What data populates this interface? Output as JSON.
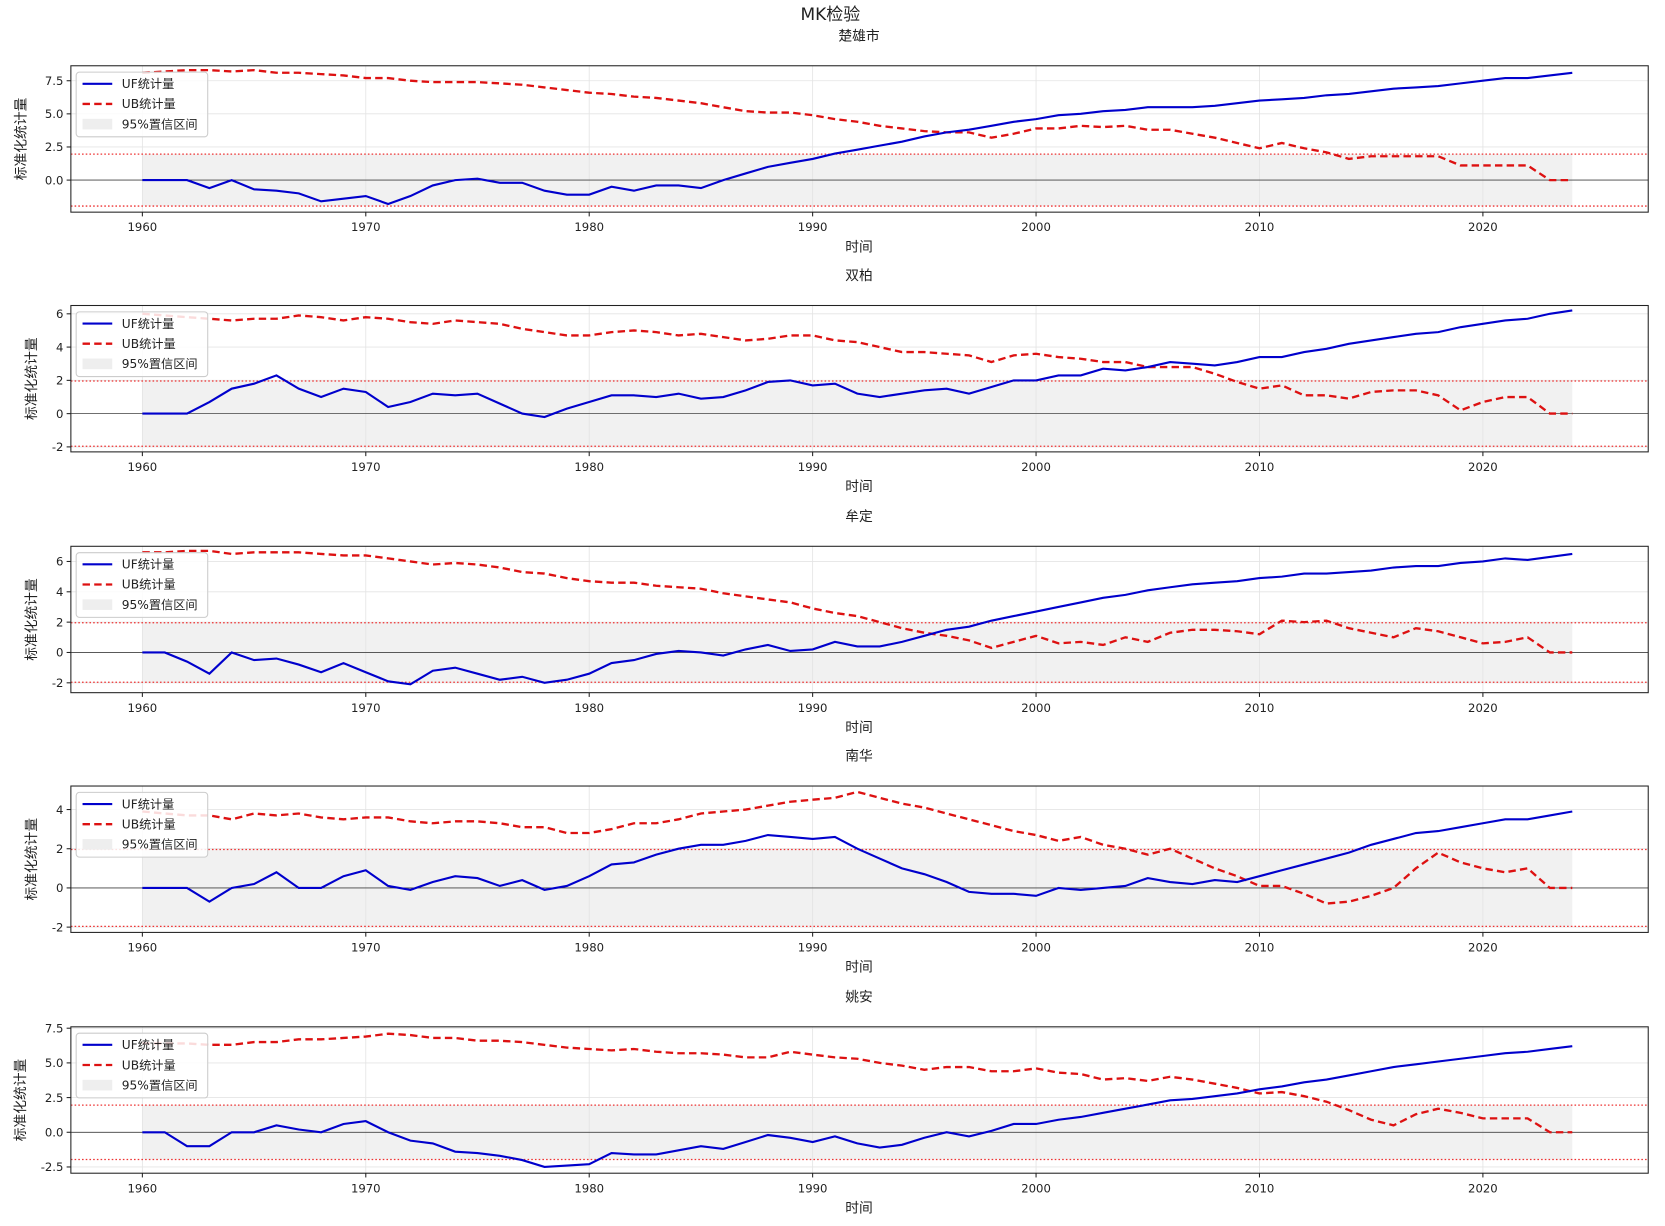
{
  "chart_data": {
    "type": "line",
    "title": "MK检验",
    "xlabel": "时间",
    "ylabel": "标准化统计量",
    "legend": {
      "placement": "top-left",
      "entries": [
        "UF统计量",
        "UB统计量",
        "95%置信区间"
      ]
    },
    "confidence_bound": 1.96,
    "xlim": [
      1956.8,
      2027.4
    ],
    "xticks": [
      1960,
      1970,
      1980,
      1990,
      2000,
      2010,
      2020
    ],
    "x_start": 1960,
    "colors": {
      "uf": "#0000cc",
      "ub": "#dd1111",
      "band": "#eeeeee",
      "bound": "#ee3333"
    },
    "grid": true,
    "panels": [
      {
        "title": "楚雄市",
        "ylim": [
          -2.42,
          8.63
        ],
        "yticks": [
          0,
          2.5,
          5,
          7.5
        ],
        "decimals": 1,
        "uf": [
          0,
          0,
          0,
          -0.6,
          0,
          -0.7,
          -0.8,
          -1.0,
          -1.6,
          -1.4,
          -1.2,
          -1.8,
          -1.2,
          -0.4,
          0,
          0.1,
          -0.2,
          -0.2,
          -0.8,
          -1.1,
          -1.1,
          -0.5,
          -0.8,
          -0.4,
          -0.4,
          -0.6,
          0,
          0.5,
          1.0,
          1.3,
          1.6,
          2.0,
          2.3,
          2.6,
          2.9,
          3.3,
          3.6,
          3.8,
          4.1,
          4.4,
          4.6,
          4.9,
          5.0,
          5.2,
          5.3,
          5.5,
          5.5,
          5.5,
          5.6,
          5.8,
          6.0,
          6.1,
          6.2,
          6.4,
          6.5,
          6.7,
          6.9,
          7.0,
          7.1,
          7.3,
          7.5,
          7.7,
          7.7,
          7.9,
          8.1
        ],
        "ub": [
          8.1,
          8.2,
          8.3,
          8.3,
          8.2,
          8.3,
          8.1,
          8.1,
          8.0,
          7.9,
          7.7,
          7.7,
          7.5,
          7.4,
          7.4,
          7.4,
          7.3,
          7.2,
          7.0,
          6.8,
          6.6,
          6.5,
          6.3,
          6.2,
          6.0,
          5.8,
          5.5,
          5.2,
          5.1,
          5.1,
          4.9,
          4.6,
          4.4,
          4.1,
          3.9,
          3.7,
          3.6,
          3.6,
          3.2,
          3.5,
          3.9,
          3.9,
          4.1,
          4.0,
          4.1,
          3.8,
          3.8,
          3.5,
          3.2,
          2.8,
          2.4,
          2.8,
          2.4,
          2.1,
          1.6,
          1.8,
          1.8,
          1.8,
          1.8,
          1.1,
          1.1,
          1.1,
          1.1,
          0,
          0
        ]
      },
      {
        "title": "双柏",
        "ylim": [
          -2.3,
          6.5
        ],
        "yticks": [
          -2,
          0,
          2,
          4,
          6
        ],
        "decimals": 0,
        "uf": [
          0,
          0,
          0,
          0.7,
          1.5,
          1.8,
          2.3,
          1.5,
          1.0,
          1.5,
          1.3,
          0.4,
          0.7,
          1.2,
          1.1,
          1.2,
          0.6,
          0,
          -0.2,
          0.3,
          0.7,
          1.1,
          1.1,
          1.0,
          1.2,
          0.9,
          1.0,
          1.4,
          1.9,
          2.0,
          1.7,
          1.8,
          1.2,
          1.0,
          1.2,
          1.4,
          1.5,
          1.2,
          1.6,
          2.0,
          2.0,
          2.3,
          2.3,
          2.7,
          2.6,
          2.8,
          3.1,
          3.0,
          2.9,
          3.1,
          3.4,
          3.4,
          3.7,
          3.9,
          4.2,
          4.4,
          4.6,
          4.8,
          4.9,
          5.2,
          5.4,
          5.6,
          5.7,
          6.0,
          6.2
        ],
        "ub": [
          6.0,
          5.9,
          5.8,
          5.7,
          5.6,
          5.7,
          5.7,
          5.9,
          5.8,
          5.6,
          5.8,
          5.7,
          5.5,
          5.4,
          5.6,
          5.5,
          5.4,
          5.1,
          4.9,
          4.7,
          4.7,
          4.9,
          5.0,
          4.9,
          4.7,
          4.8,
          4.6,
          4.4,
          4.5,
          4.7,
          4.7,
          4.4,
          4.3,
          4.0,
          3.7,
          3.7,
          3.6,
          3.5,
          3.1,
          3.5,
          3.6,
          3.4,
          3.3,
          3.1,
          3.1,
          2.8,
          2.8,
          2.8,
          2.4,
          1.9,
          1.5,
          1.7,
          1.1,
          1.1,
          0.9,
          1.3,
          1.4,
          1.4,
          1.1,
          0.2,
          0.7,
          1.0,
          1.0,
          0,
          0
        ]
      },
      {
        "title": "牟定",
        "ylim": [
          -2.65,
          7.0
        ],
        "yticks": [
          -2,
          0,
          2,
          4,
          6
        ],
        "decimals": 0,
        "uf": [
          0,
          0,
          -0.6,
          -1.4,
          0,
          -0.5,
          -0.4,
          -0.8,
          -1.3,
          -0.7,
          -1.3,
          -1.9,
          -2.1,
          -1.2,
          -1.0,
          -1.4,
          -1.8,
          -1.6,
          -2.0,
          -1.8,
          -1.4,
          -0.7,
          -0.5,
          -0.1,
          0.1,
          0,
          -0.2,
          0.2,
          0.5,
          0.1,
          0.2,
          0.7,
          0.4,
          0.4,
          0.7,
          1.1,
          1.5,
          1.7,
          2.1,
          2.4,
          2.7,
          3.0,
          3.3,
          3.6,
          3.8,
          4.1,
          4.3,
          4.5,
          4.6,
          4.7,
          4.9,
          5.0,
          5.2,
          5.2,
          5.3,
          5.4,
          5.6,
          5.7,
          5.7,
          5.9,
          6.0,
          6.2,
          6.1,
          6.3,
          6.5
        ],
        "ub": [
          6.6,
          6.6,
          6.7,
          6.7,
          6.5,
          6.6,
          6.6,
          6.6,
          6.5,
          6.4,
          6.4,
          6.2,
          6.0,
          5.8,
          5.9,
          5.8,
          5.6,
          5.3,
          5.2,
          4.9,
          4.7,
          4.6,
          4.6,
          4.4,
          4.3,
          4.2,
          3.9,
          3.7,
          3.5,
          3.3,
          2.9,
          2.6,
          2.4,
          2.0,
          1.6,
          1.3,
          1.1,
          0.8,
          0.3,
          0.7,
          1.1,
          0.6,
          0.7,
          0.5,
          1.0,
          0.7,
          1.3,
          1.5,
          1.5,
          1.4,
          1.2,
          2.1,
          2.0,
          2.1,
          1.6,
          1.3,
          1.0,
          1.6,
          1.4,
          1.0,
          0.6,
          0.7,
          1.0,
          0,
          0
        ]
      },
      {
        "title": "南华",
        "ylim": [
          -2.27,
          5.2
        ],
        "yticks": [
          -2,
          0,
          2,
          4
        ],
        "decimals": 0,
        "uf": [
          0,
          0,
          0,
          -0.7,
          0,
          0.2,
          0.8,
          0,
          0,
          0.6,
          0.9,
          0.1,
          -0.1,
          0.3,
          0.6,
          0.5,
          0.1,
          0.4,
          -0.1,
          0.1,
          0.6,
          1.2,
          1.3,
          1.7,
          2.0,
          2.2,
          2.2,
          2.4,
          2.7,
          2.6,
          2.5,
          2.6,
          2.0,
          1.5,
          1.0,
          0.7,
          0.3,
          -0.2,
          -0.3,
          -0.3,
          -0.4,
          0,
          -0.1,
          0,
          0.1,
          0.5,
          0.3,
          0.2,
          0.4,
          0.3,
          0.6,
          0.9,
          1.2,
          1.5,
          1.8,
          2.2,
          2.5,
          2.8,
          2.9,
          3.1,
          3.3,
          3.5,
          3.5,
          3.7,
          3.9
        ],
        "ub": [
          3.9,
          3.8,
          3.7,
          3.7,
          3.5,
          3.8,
          3.7,
          3.8,
          3.6,
          3.5,
          3.6,
          3.6,
          3.4,
          3.3,
          3.4,
          3.4,
          3.3,
          3.1,
          3.1,
          2.8,
          2.8,
          3.0,
          3.3,
          3.3,
          3.5,
          3.8,
          3.9,
          4.0,
          4.2,
          4.4,
          4.5,
          4.6,
          4.9,
          4.6,
          4.3,
          4.1,
          3.8,
          3.5,
          3.2,
          2.9,
          2.7,
          2.4,
          2.6,
          2.2,
          2.0,
          1.7,
          2.0,
          1.5,
          1.0,
          0.6,
          0.1,
          0.1,
          -0.3,
          -0.8,
          -0.7,
          -0.4,
          0,
          1.0,
          1.8,
          1.3,
          1.0,
          0.8,
          1.0,
          0,
          0
        ]
      },
      {
        "title": "姚安",
        "ylim": [
          -2.95,
          7.6
        ],
        "yticks": [
          -2.5,
          0,
          2.5,
          5,
          7.5
        ],
        "decimals": 1,
        "uf": [
          0,
          0,
          -1.0,
          -1.0,
          0,
          0,
          0.5,
          0.2,
          0,
          0.6,
          0.8,
          0,
          -0.6,
          -0.8,
          -1.4,
          -1.5,
          -1.7,
          -2.0,
          -2.5,
          -2.4,
          -2.3,
          -1.5,
          -1.6,
          -1.6,
          -1.3,
          -1.0,
          -1.2,
          -0.7,
          -0.2,
          -0.4,
          -0.7,
          -0.3,
          -0.8,
          -1.1,
          -0.9,
          -0.4,
          0,
          -0.3,
          0.1,
          0.6,
          0.6,
          0.9,
          1.1,
          1.4,
          1.7,
          2.0,
          2.3,
          2.4,
          2.6,
          2.8,
          3.1,
          3.3,
          3.6,
          3.8,
          4.1,
          4.4,
          4.7,
          4.9,
          5.1,
          5.3,
          5.5,
          5.7,
          5.8,
          6.0,
          6.2
        ],
        "ub": [
          6.4,
          6.4,
          6.4,
          6.3,
          6.3,
          6.5,
          6.5,
          6.7,
          6.7,
          6.8,
          6.9,
          7.1,
          7.0,
          6.8,
          6.8,
          6.6,
          6.6,
          6.5,
          6.3,
          6.1,
          6.0,
          5.9,
          6.0,
          5.8,
          5.7,
          5.7,
          5.6,
          5.4,
          5.4,
          5.8,
          5.6,
          5.4,
          5.3,
          5.0,
          4.8,
          4.5,
          4.7,
          4.7,
          4.4,
          4.4,
          4.6,
          4.3,
          4.2,
          3.8,
          3.9,
          3.7,
          4.0,
          3.8,
          3.5,
          3.2,
          2.8,
          2.9,
          2.6,
          2.2,
          1.6,
          0.9,
          0.5,
          1.3,
          1.7,
          1.4,
          1.0,
          1.0,
          1.0,
          0,
          0
        ]
      }
    ]
  }
}
